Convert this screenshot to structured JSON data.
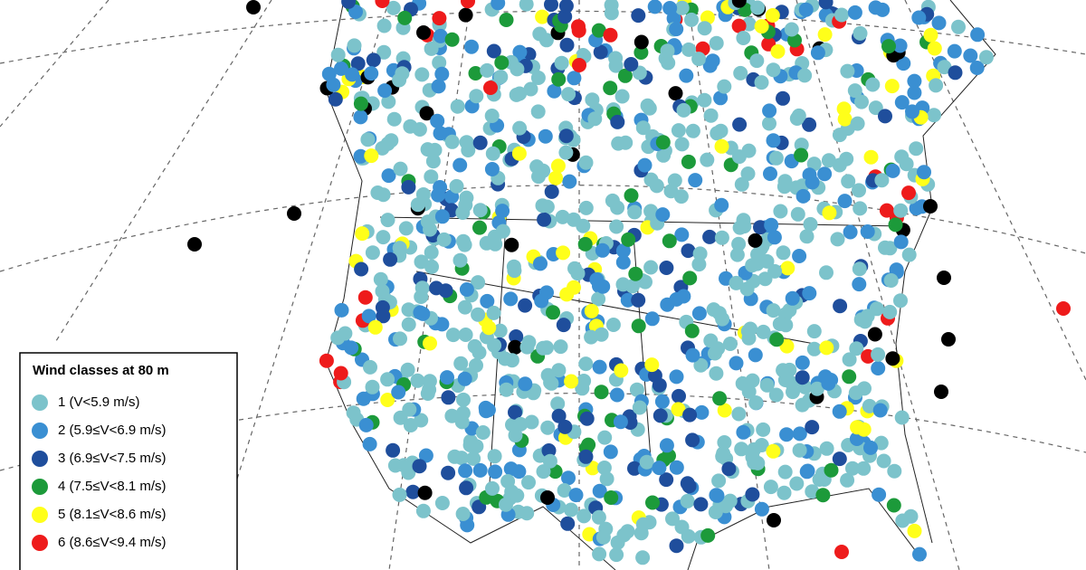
{
  "legend": {
    "title": "Wind classes at 80 m",
    "items": [
      {
        "label": "1 (V<5.9 m/s)",
        "color": "#7cc3cb"
      },
      {
        "label": "2 (5.9≤V<6.9 m/s)",
        "color": "#3a8fd2"
      },
      {
        "label": "3 (6.9≤V<7.5 m/s)",
        "color": "#1f4e9c"
      },
      {
        "label": "4 (7.5≤V<8.1 m/s)",
        "color": "#1c9a3a"
      },
      {
        "label": "5 (8.1≤V<8.6 m/s)",
        "color": "#ffff1a"
      },
      {
        "label": "6 (8.6≤V<9.4 m/s)",
        "color": "#ee1b1b"
      }
    ]
  }
}
